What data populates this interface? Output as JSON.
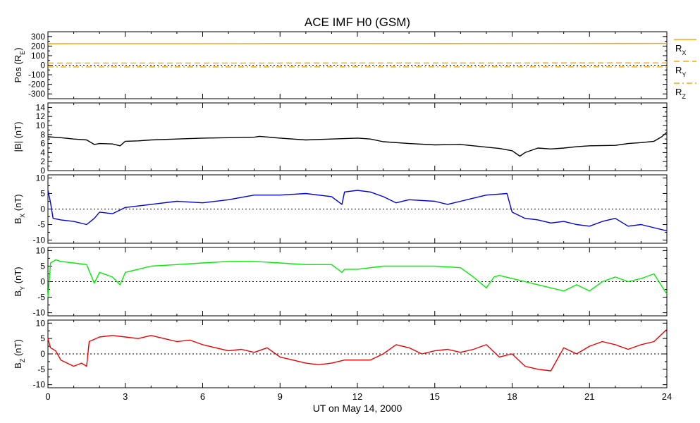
{
  "chart_data": {
    "type": "line",
    "title": "ACE IMF H0 (GSM)",
    "xlabel": "UT on May 14, 2000",
    "xlim": [
      0,
      24
    ],
    "xticks": [
      0,
      3,
      6,
      9,
      12,
      15,
      18,
      21,
      24
    ],
    "xticklabels": [
      "0",
      "3",
      "6",
      "9",
      "12",
      "15",
      "18",
      "21",
      "24"
    ],
    "panels": [
      {
        "id": "pos",
        "ylabel": "Pos (R",
        "ylabel_sub": "E",
        "ylabel_tail": ")",
        "ylim": [
          -350,
          350
        ],
        "yticks": [
          300,
          200,
          100,
          0,
          -100,
          -200,
          -300
        ],
        "yticklabels": [
          "300",
          "200",
          "100",
          "0",
          "-100",
          "-200",
          "-300"
        ],
        "zero_line": true,
        "series": [
          {
            "name": "R",
            "name_sub": "X",
            "color": "#ffa500",
            "dash": "solid",
            "x": [
              0,
              24
            ],
            "y": [
              225,
              228
            ]
          },
          {
            "name": "R",
            "name_sub": "Y",
            "color": "#ffa500",
            "dash": "dashed",
            "x": [
              0,
              24
            ],
            "y": [
              22,
              24
            ]
          },
          {
            "name": "R",
            "name_sub": "Z",
            "color": "#ffa500",
            "dash": "dashdot",
            "x": [
              0,
              24
            ],
            "y": [
              -18,
              -17
            ]
          }
        ]
      },
      {
        "id": "bmag",
        "ylabel": "|B| (nT)",
        "ylim": [
          0,
          15
        ],
        "yticks": [
          14,
          12,
          10,
          8,
          6,
          4,
          2,
          0
        ],
        "yticklabels": [
          "14",
          "12",
          "10",
          "8",
          "6",
          "4",
          "2",
          "0"
        ],
        "zero_line": false,
        "series": [
          {
            "color": "#000000",
            "x": [
              0,
              0.5,
              1.0,
              1.5,
              1.8,
              2.0,
              2.5,
              2.8,
              3.0,
              3.5,
              4.0,
              5.0,
              6.0,
              7.0,
              8.0,
              8.2,
              9.0,
              10.0,
              11.0,
              12.0,
              12.5,
              13.0,
              14.0,
              15.0,
              16.0,
              16.5,
              17.0,
              17.5,
              18.0,
              18.3,
              18.5,
              19.0,
              19.5,
              20.0,
              20.5,
              21.0,
              22.0,
              22.5,
              23.0,
              23.5,
              23.8,
              24.0
            ],
            "y": [
              7.5,
              7.3,
              7.0,
              6.8,
              5.8,
              6.0,
              5.9,
              5.5,
              6.5,
              6.6,
              6.8,
              7.0,
              7.2,
              7.3,
              7.4,
              7.6,
              7.2,
              6.8,
              7.0,
              7.2,
              7.0,
              6.4,
              6.0,
              5.7,
              5.8,
              5.5,
              5.2,
              4.9,
              4.4,
              3.2,
              4.0,
              5.0,
              4.8,
              5.0,
              5.3,
              5.5,
              5.6,
              6.0,
              6.2,
              6.5,
              7.5,
              8.5
            ]
          }
        ]
      },
      {
        "id": "bx",
        "ylabel": "B",
        "ylabel_sub": "X",
        "ylabel_tail": " (nT)",
        "ylim": [
          -11,
          11
        ],
        "yticks": [
          10,
          5,
          0,
          -5,
          -10
        ],
        "yticklabels": [
          "10",
          "5",
          "0",
          "-5",
          "-10"
        ],
        "zero_line": true,
        "series": [
          {
            "color": "#0000dd",
            "x": [
              0,
              0.1,
              0.2,
              0.5,
              1.0,
              1.5,
              1.8,
              2.0,
              2.5,
              3.0,
              4.0,
              5.0,
              6.0,
              7.0,
              8.0,
              9.0,
              10.0,
              11.0,
              11.4,
              11.5,
              12.0,
              12.5,
              13.0,
              13.5,
              14.0,
              15.0,
              15.5,
              16.0,
              16.5,
              17.0,
              17.8,
              18.0,
              18.5,
              19.0,
              19.5,
              20.0,
              20.5,
              21.0,
              21.5,
              22.0,
              22.5,
              23.0,
              23.5,
              24.0
            ],
            "y": [
              6,
              2,
              -3,
              -3.5,
              -4,
              -5,
              -3,
              -1,
              -1.5,
              0.5,
              1.5,
              2.5,
              2,
              3,
              4.5,
              4.5,
              5,
              4,
              1.5,
              5.5,
              6,
              5.5,
              4,
              2,
              3,
              2.5,
              1.5,
              2.5,
              3.5,
              4.5,
              5,
              -1,
              -3,
              -3.5,
              -4.5,
              -4,
              -5,
              -5.5,
              -4,
              -3,
              -5.5,
              -5,
              -6,
              -7
            ]
          }
        ]
      },
      {
        "id": "by",
        "ylabel": "B",
        "ylabel_sub": "Y",
        "ylabel_tail": " (nT)",
        "ylim": [
          -11,
          11
        ],
        "yticks": [
          10,
          5,
          0,
          -5,
          -10
        ],
        "yticklabels": [
          "10",
          "5",
          "0",
          "-5",
          "-10"
        ],
        "zero_line": true,
        "series": [
          {
            "color": "#00ee00",
            "x": [
              0,
              0.1,
              0.3,
              0.5,
              1.0,
              1.5,
              1.8,
              2.0,
              2.5,
              2.8,
              3.0,
              3.5,
              4.0,
              5.0,
              6.0,
              7.0,
              8.0,
              9.0,
              10.0,
              11.0,
              11.4,
              11.5,
              12.0,
              13.0,
              14.0,
              15.0,
              16.0,
              16.5,
              17.0,
              17.3,
              17.5,
              18.0,
              18.5,
              19.0,
              19.5,
              20.0,
              20.5,
              21.0,
              21.5,
              22.0,
              22.5,
              23.0,
              23.5,
              24.0
            ],
            "y": [
              -5,
              6,
              7,
              6.5,
              6,
              5.5,
              -0.5,
              3,
              1.5,
              -1,
              3,
              4,
              5,
              5.5,
              6,
              6.5,
              6.5,
              6,
              5.5,
              5.5,
              3,
              4,
              4,
              5,
              5,
              5,
              4.5,
              1.5,
              -2,
              1.5,
              2,
              1,
              0,
              -1,
              -2,
              -3,
              -1,
              -3,
              0,
              1.5,
              0,
              1,
              2.5,
              -4
            ]
          }
        ]
      },
      {
        "id": "bz",
        "ylabel": "B",
        "ylabel_sub": "Z",
        "ylabel_tail": " (nT)",
        "ylim": [
          -11,
          11
        ],
        "yticks": [
          10,
          5,
          0,
          -5,
          -10
        ],
        "yticklabels": [
          "10",
          "5",
          "0",
          "-5",
          "-10"
        ],
        "zero_line": true,
        "series": [
          {
            "color": "#ee0000",
            "x": [
              0,
              0.1,
              0.3,
              0.5,
              1.0,
              1.3,
              1.5,
              1.6,
              2.0,
              2.5,
              3.0,
              3.5,
              4.0,
              4.5,
              5.0,
              5.5,
              6.0,
              6.5,
              7.0,
              7.5,
              8.0,
              8.5,
              9.0,
              9.5,
              10.0,
              10.5,
              11.0,
              11.5,
              12.0,
              12.5,
              13.0,
              13.5,
              14.0,
              14.5,
              15.0,
              15.5,
              16.0,
              16.5,
              17.0,
              17.5,
              18.0,
              18.5,
              19.0,
              19.5,
              20.0,
              20.5,
              21.0,
              21.5,
              22.0,
              22.5,
              23.0,
              23.5,
              24.0
            ],
            "y": [
              5,
              2,
              1,
              -2,
              -4,
              -3,
              -4,
              4,
              5.5,
              6,
              5.5,
              5,
              6,
              5,
              4,
              4.5,
              3,
              2,
              1,
              1.5,
              0.5,
              2,
              -1,
              -2,
              -3,
              -3.5,
              -3,
              -2,
              -2,
              -2,
              0,
              3,
              2,
              0,
              1,
              1.5,
              0.5,
              1.5,
              3,
              -1,
              0,
              -4,
              -5,
              -5.5,
              2,
              0,
              2.5,
              4,
              3,
              1.5,
              3,
              4,
              8
            ]
          }
        ]
      }
    ],
    "legend": {
      "placement": "right of top panel",
      "entries": [
        {
          "name": "R",
          "name_sub": "X",
          "dash": "solid"
        },
        {
          "name": "R",
          "name_sub": "Y",
          "dash": "dashed"
        },
        {
          "name": "R",
          "name_sub": "Z",
          "dash": "dashdot"
        }
      ]
    },
    "grid": false
  }
}
